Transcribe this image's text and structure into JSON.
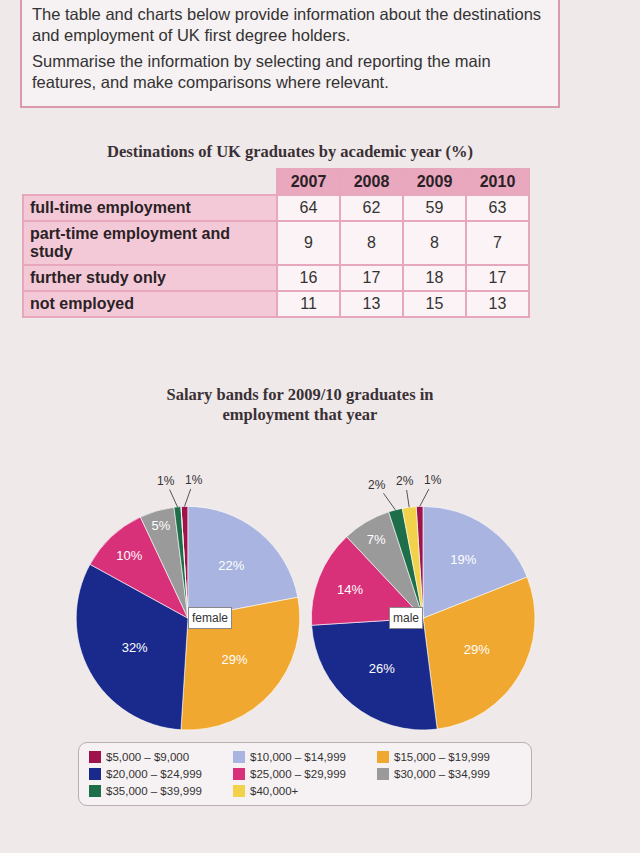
{
  "task": {
    "lines": [
      "The table and charts below provide information about the destinations and employment of UK first degree holders.",
      "Summarise the information by selecting and reporting the main features, and make comparisons where relevant."
    ]
  },
  "table": {
    "title": "Destinations of UK graduates by academic year (%)",
    "header": [
      null,
      "2007",
      "2008",
      "2009",
      "2010"
    ],
    "rows": [
      [
        "full-time employment",
        64,
        62,
        59,
        63
      ],
      [
        "part-time employment and study",
        9,
        8,
        8,
        7
      ],
      [
        "further study only",
        16,
        17,
        18,
        17
      ],
      [
        "not employed",
        11,
        13,
        15,
        13
      ]
    ]
  },
  "charts_title": "Salary bands for 2009/10 graduates in employment that year",
  "chart_data": [
    {
      "type": "pie",
      "title": "female",
      "categories": [
        "$5,000 – $9,000",
        "$10,000 – $14,999",
        "$15,000 – $19,999",
        "$20,000 – $24,999",
        "$25,000 – $29,999",
        "$30,000 – $34,999",
        "$35,000 – $39,999",
        "$40,000+"
      ],
      "values": [
        1,
        22,
        29,
        32,
        10,
        5,
        1,
        0
      ],
      "value_labels": [
        "1%",
        "22%",
        "29%",
        "32%",
        "10%",
        "5%",
        "1%",
        null
      ],
      "colors": [
        "#a0124a",
        "#a9b4e0",
        "#f0a830",
        "#1a2a8c",
        "#d8317a",
        "#9a9a9a",
        "#1e6e4a",
        "#f2d24a"
      ],
      "data_labels": true
    },
    {
      "type": "pie",
      "title": "male",
      "categories": [
        "$5,000 – $9,000",
        "$10,000 – $14,999",
        "$15,000 – $19,999",
        "$20,000 – $24,999",
        "$25,000 – $29,999",
        "$30,000 – $34,999",
        "$35,000 – $39,999",
        "$40,000+"
      ],
      "values": [
        1,
        19,
        29,
        26,
        14,
        7,
        2,
        2
      ],
      "value_labels": [
        "1%",
        "19%",
        "29%",
        "26%",
        "14%",
        "7%",
        "2%",
        "2%"
      ],
      "colors": [
        "#a0124a",
        "#a9b4e0",
        "#f0a830",
        "#1a2a8c",
        "#d8317a",
        "#9a9a9a",
        "#1e6e4a",
        "#f2d24a"
      ],
      "data_labels": true
    }
  ]
}
